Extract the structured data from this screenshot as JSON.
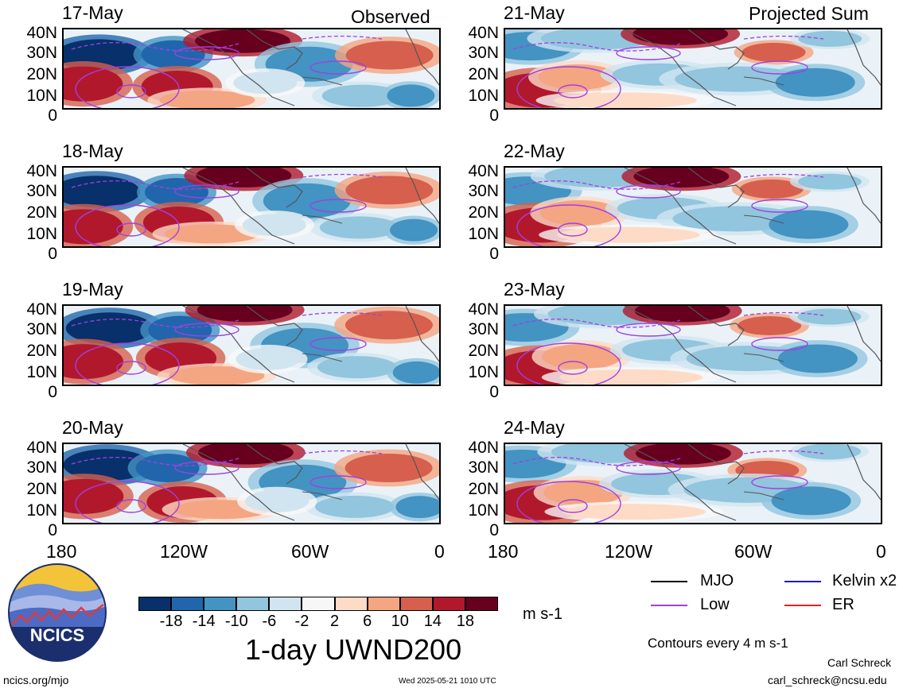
{
  "column_headers": {
    "left": "Observed",
    "right": "Projected Sum"
  },
  "panels": [
    {
      "date": "17-May",
      "column": "Observed"
    },
    {
      "date": "18-May",
      "column": "Observed"
    },
    {
      "date": "19-May",
      "column": "Observed"
    },
    {
      "date": "20-May",
      "column": "Observed"
    },
    {
      "date": "21-May",
      "column": "Projected Sum"
    },
    {
      "date": "22-May",
      "column": "Projected Sum"
    },
    {
      "date": "23-May",
      "column": "Projected Sum"
    },
    {
      "date": "24-May",
      "column": "Projected Sum"
    }
  ],
  "lat_labels": [
    "40N",
    "30N",
    "20N",
    "10N",
    "0"
  ],
  "lon_labels": [
    "180",
    "120W",
    "60W",
    "0"
  ],
  "colorbar": {
    "ticks": [
      "-18",
      "-14",
      "-10",
      "-6",
      "-2",
      "2",
      "6",
      "10",
      "14",
      "18"
    ],
    "colors": [
      "#08306b",
      "#2166ac",
      "#4393c3",
      "#92c5de",
      "#d1e5f0",
      "#f7f7f7",
      "#fddbc7",
      "#f4a582",
      "#d6604d",
      "#b2182b",
      "#67001f"
    ],
    "units": "m s-1"
  },
  "title": "1-day UWND200",
  "legend": [
    {
      "label": "MJO",
      "color": "#000000"
    },
    {
      "label": "Kelvin x2",
      "color": "#1a1acc"
    },
    {
      "label": "Low",
      "color": "#a040e0"
    },
    {
      "label": "ER",
      "color": "#dd2222"
    }
  ],
  "contours_note": "Contours every 4 m s-1",
  "author": "Carl Schreck",
  "email": "carl_schreck@ncsu.edu",
  "website": "ncics.org/mjo",
  "timestamp": "Wed 2025-05-21 1010 UTC",
  "logo_text": "NCICS"
}
